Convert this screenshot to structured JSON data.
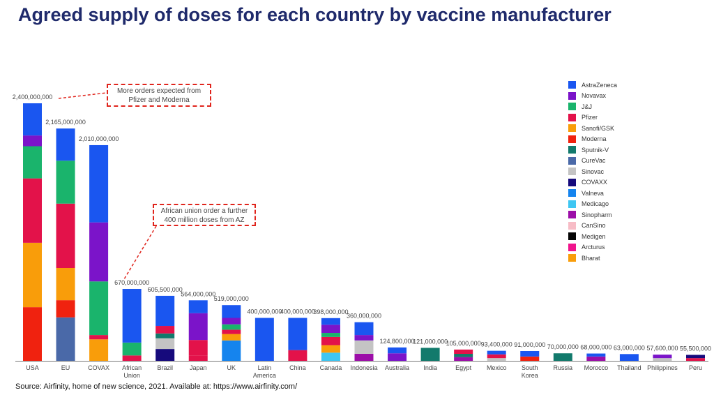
{
  "title": "Agreed supply of doses for each country by vaccine manufacturer",
  "source": "Source: Airfinity, home of new science, 2021. Available at: https://www.airfinity.com/",
  "callouts": [
    {
      "text": "More orders expected from Pfizer and Moderna",
      "target": "USA"
    },
    {
      "text": "African union order a further 400 million doses from AZ",
      "target": "African Union"
    }
  ],
  "manufacturers": [
    {
      "name": "AstraZeneca",
      "color": "#1a56f0"
    },
    {
      "name": "Novavax",
      "color": "#7b14c9"
    },
    {
      "name": "J&J",
      "color": "#1ab46c"
    },
    {
      "name": "Pfizer",
      "color": "#e3124a"
    },
    {
      "name": "Sanofi/GSK",
      "color": "#f99d0a"
    },
    {
      "name": "Moderna",
      "color": "#f0220f"
    },
    {
      "name": "Sputnik-V",
      "color": "#127a6c"
    },
    {
      "name": "CureVac",
      "color": "#4a69a8"
    },
    {
      "name": "Sinovac",
      "color": "#c4c4c4"
    },
    {
      "name": "COVAXX",
      "color": "#160a7c"
    },
    {
      "name": "Valneva",
      "color": "#1584ee"
    },
    {
      "name": "Medicago",
      "color": "#3ec6f2"
    },
    {
      "name": "Sinopharm",
      "color": "#9c0ea8"
    },
    {
      "name": "CanSino",
      "color": "#f7bcc6"
    },
    {
      "name": "Medigen",
      "color": "#050505"
    },
    {
      "name": "Arcturus",
      "color": "#f0148c"
    },
    {
      "name": "Bharat",
      "color": "#f99d0a"
    }
  ],
  "chart_data": {
    "type": "bar",
    "stacked": true,
    "title": "Agreed supply of doses for each country by vaccine manufacturer",
    "ylim": [
      0,
      2400000000
    ],
    "grid": false,
    "legend": "right",
    "categories": [
      "USA",
      "EU",
      "COVAX",
      "African Union",
      "Brazil",
      "Japan",
      "UK",
      "Latin America",
      "China",
      "Canada",
      "Indonesia",
      "Australia",
      "India",
      "Egypt",
      "Mexico",
      "South Korea",
      "Russia",
      "Morocco",
      "Thailand",
      "Philippines",
      "Peru"
    ],
    "totals": [
      2400000000,
      2165000000,
      2010000000,
      670000000,
      605500000,
      564000000,
      519000000,
      400000000,
      400000000,
      398000000,
      360000000,
      124800000,
      121000000,
      105000000,
      93400000,
      91000000,
      70000000,
      68000000,
      63000000,
      57600000,
      55500000
    ],
    "total_labels": [
      "2,400,000,000",
      "2,165,000,000",
      "2,010,000,000",
      "670,000,000",
      "605,500,000",
      "564,000,000",
      "519,000,000",
      "400,000,000",
      "400,000,000",
      "398,000,000",
      "360,000,000",
      "124,800,000",
      "121,000,000",
      "105,000,000",
      "93,400,000",
      "91,000,000",
      "70,000,000",
      "68,000,000",
      "63,000,000",
      "57,600,000",
      "55,500,000"
    ],
    "segments": [
      [
        [
          "Moderna",
          500000000
        ],
        [
          "Sanofi/GSK",
          600000000
        ],
        [
          "Pfizer",
          600000000
        ],
        [
          "J&J",
          300000000
        ],
        [
          "Novavax",
          100000000
        ],
        [
          "AstraZeneca",
          300000000
        ]
      ],
      [
        [
          "CureVac",
          405000000
        ],
        [
          "Moderna",
          160000000
        ],
        [
          "Sanofi/GSK",
          300000000
        ],
        [
          "Pfizer",
          600000000
        ],
        [
          "J&J",
          400000000
        ],
        [
          "AstraZeneca",
          300000000
        ]
      ],
      [
        [
          "Sanofi/GSK",
          200000000
        ],
        [
          "Pfizer",
          40000000
        ],
        [
          "J&J",
          500000000
        ],
        [
          "Novavax",
          550000000
        ],
        [
          "AstraZeneca",
          720000000
        ]
      ],
      [
        [
          "Pfizer",
          50000000
        ],
        [
          "J&J",
          120000000
        ],
        [
          "AstraZeneca",
          500000000
        ]
      ],
      [
        [
          "COVAXX",
          110000000
        ],
        [
          "Sinovac",
          100000000
        ],
        [
          "Sputnik-V",
          45000000
        ],
        [
          "Pfizer",
          70000000
        ],
        [
          "AstraZeneca",
          280500000
        ]
      ],
      [
        [
          "Pfizer",
          50000000
        ],
        [
          "Pfizer",
          144000000
        ],
        [
          "Novavax",
          250000000
        ],
        [
          "AstraZeneca",
          120000000
        ]
      ],
      [
        [
          "Valneva",
          190000000
        ],
        [
          "Sanofi/GSK",
          60000000
        ],
        [
          "Pfizer",
          40000000
        ],
        [
          "J&J",
          50000000
        ],
        [
          "Novavax",
          60000000
        ],
        [
          "AstraZeneca",
          119000000
        ]
      ],
      [
        [
          "AstraZeneca",
          400000000
        ]
      ],
      [
        [
          "Pfizer",
          100000000
        ],
        [
          "AstraZeneca",
          300000000
        ]
      ],
      [
        [
          "Medicago",
          76000000
        ],
        [
          "Sanofi/GSK",
          70000000
        ],
        [
          "Pfizer",
          76000000
        ],
        [
          "J&J",
          38000000
        ],
        [
          "Novavax",
          76000000
        ],
        [
          "AstraZeneca",
          62000000
        ]
      ],
      [
        [
          "Sinopharm",
          65000000
        ],
        [
          "Sinovac",
          125000000
        ],
        [
          "Novavax",
          50000000
        ],
        [
          "AstraZeneca",
          120000000
        ]
      ],
      [
        [
          "Novavax",
          70000000
        ],
        [
          "AstraZeneca",
          54800000
        ]
      ],
      [
        [
          "Sputnik-V",
          121000000
        ]
      ],
      [
        [
          "Sinopharm",
          35000000
        ],
        [
          "Sputnik-V",
          30000000
        ],
        [
          "Pfizer",
          40000000
        ]
      ],
      [
        [
          "Sinovac",
          25000000
        ],
        [
          "Pfizer",
          35000000
        ],
        [
          "AstraZeneca",
          33400000
        ]
      ],
      [
        [
          "Moderna",
          40000000
        ],
        [
          "AstraZeneca",
          51000000
        ]
      ],
      [
        [
          "Sputnik-V",
          70000000
        ]
      ],
      [
        [
          "Sinopharm",
          40000000
        ],
        [
          "AstraZeneca",
          28000000
        ]
      ],
      [
        [
          "AstraZeneca",
          63000000
        ]
      ],
      [
        [
          "Sinovac",
          25000000
        ],
        [
          "Novavax",
          32600000
        ]
      ],
      [
        [
          "Pfizer",
          25000000
        ],
        [
          "COVAXX",
          30500000
        ]
      ]
    ]
  }
}
